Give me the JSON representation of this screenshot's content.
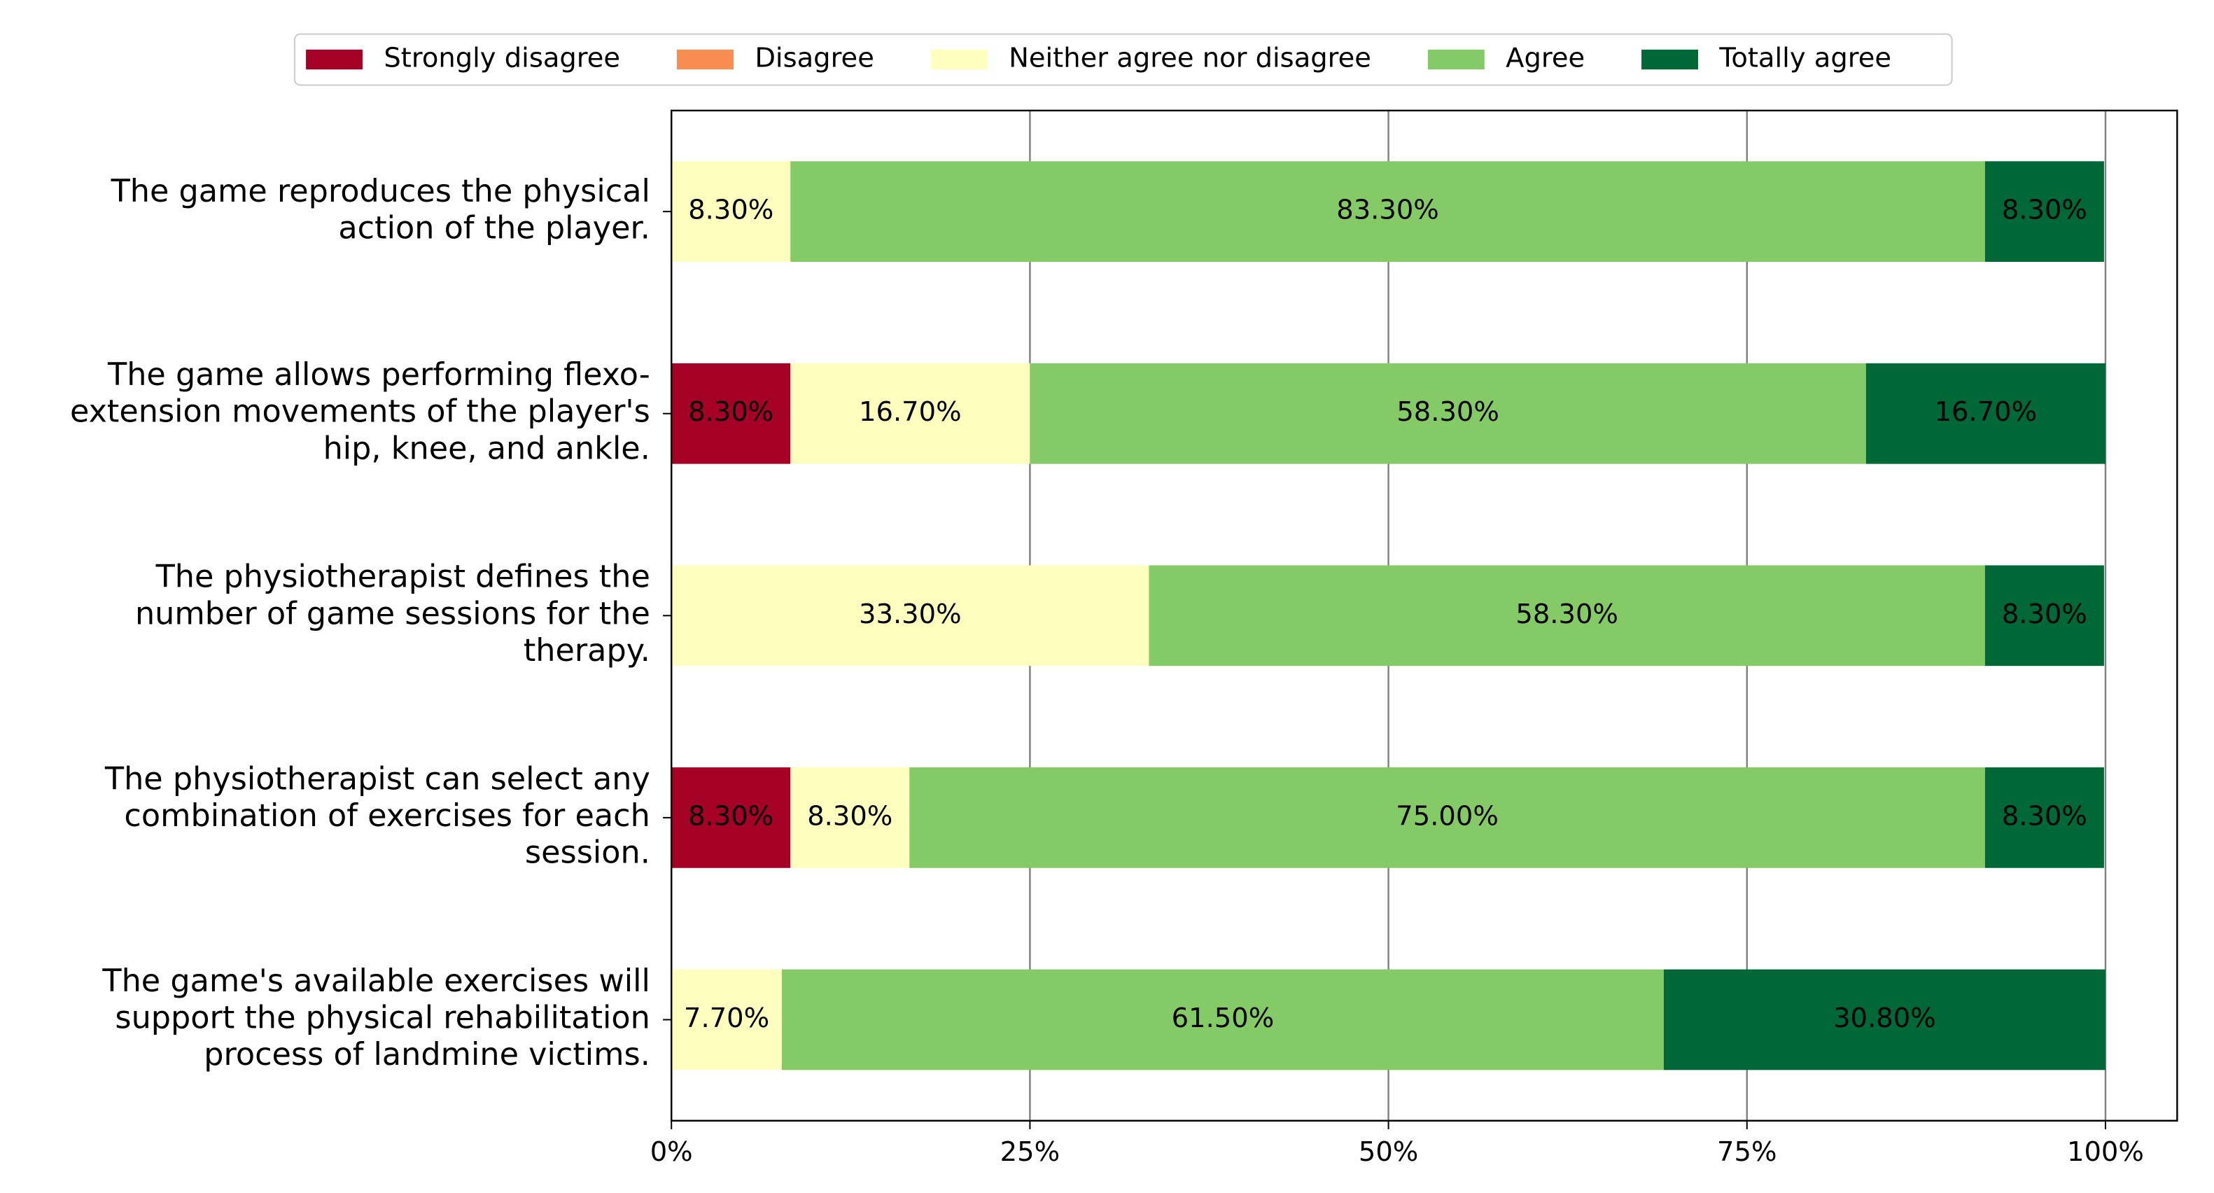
{
  "chart_data": {
    "type": "stacked-barh",
    "categories": [
      "The game reproduces the physical\naction of the player.",
      "The game allows performing flexo-\nextension movements of the player's\nhip, knee, and ankle.",
      "The physiotherapist defines the\nnumber of game sessions for the\ntherapy.",
      "The physiotherapist can select any\ncombination of exercises for each\nsession.",
      "The game's available exercises will\nsupport the physical rehabilitation\nprocess of landmine victims."
    ],
    "series": [
      {
        "name": "Strongly disagree",
        "color": "#a50026",
        "values": [
          0,
          8.3,
          0,
          8.3,
          0
        ],
        "value_labels": [
          null,
          "8.30%",
          null,
          "8.30%",
          null
        ]
      },
      {
        "name": "Disagree",
        "color": "#f88d52",
        "values": [
          0,
          0,
          0,
          0,
          0
        ],
        "value_labels": [
          null,
          null,
          null,
          null,
          null
        ]
      },
      {
        "name": "Neither agree nor disagree",
        "color": "#fefebe",
        "values": [
          8.3,
          16.7,
          33.3,
          8.3,
          7.7
        ],
        "value_labels": [
          "8.30%",
          "16.70%",
          "33.30%",
          "8.30%",
          "7.70%"
        ]
      },
      {
        "name": "Agree",
        "color": "#84ca66",
        "values": [
          83.3,
          58.3,
          58.3,
          75.0,
          61.5
        ],
        "value_labels": [
          "83.30%",
          "58.30%",
          "58.30%",
          "75.00%",
          "61.50%"
        ]
      },
      {
        "name": "Totally agree",
        "color": "#006837",
        "values": [
          8.3,
          16.7,
          8.3,
          8.3,
          30.8
        ],
        "value_labels": [
          "8.30%",
          "16.70%",
          "8.30%",
          "8.30%",
          "30.80%"
        ]
      }
    ],
    "xlim": [
      0,
      105
    ],
    "xticks": [
      {
        "value": 0,
        "label": "0%"
      },
      {
        "value": 25,
        "label": "25%"
      },
      {
        "value": 50,
        "label": "50%"
      },
      {
        "value": 75,
        "label": "75%"
      },
      {
        "value": 100,
        "label": "100%"
      }
    ],
    "grid": true,
    "legend": "top"
  }
}
